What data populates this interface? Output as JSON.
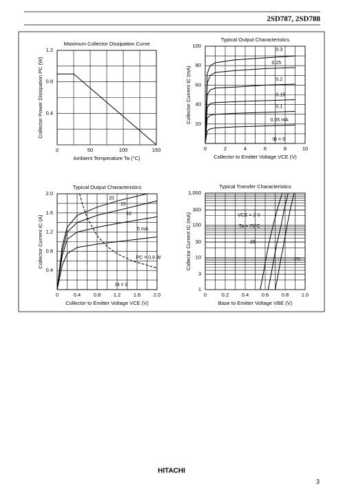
{
  "header": {
    "part_numbers": "2SD787, 2SD788"
  },
  "chart_data": [
    {
      "type": "line",
      "title": "Maximum Collector Dissipation Curve",
      "x_label": "Ambient Temperature  Ta  (°C)",
      "y_label": "Collector Power Dissipation PC (W)",
      "xlim": [
        0,
        150
      ],
      "ylim": [
        0,
        1.2
      ],
      "xticks": [
        0,
        50,
        100,
        150
      ],
      "yticks": [
        0.4,
        0.8,
        1.2
      ],
      "grid": true,
      "minor_grid": 2,
      "series": [
        {
          "color": "#000000",
          "x": [
            0,
            25,
            150
          ],
          "values": [
            0.9,
            0.9,
            0
          ]
        }
      ]
    },
    {
      "type": "line",
      "title": "Typical Output Characteristics",
      "x_label": "Collector to Emitter Voltage  VCE  (V)",
      "y_label": "Collector Current  IC  (mA)",
      "xlim": [
        0,
        10
      ],
      "ylim": [
        0,
        100
      ],
      "xticks": [
        0,
        2,
        4,
        6,
        8,
        10
      ],
      "yticks": [
        20,
        40,
        60,
        80,
        100
      ],
      "grid": true,
      "minor_grid": 2,
      "series": [
        {
          "name": "IB = 0",
          "color": "#000000",
          "x": [
            0,
            0.2,
            0.5,
            1,
            3,
            6,
            9
          ],
          "values": [
            0,
            0,
            0,
            0,
            0,
            0,
            0
          ]
        },
        {
          "name": "0.05 mA",
          "color": "#000000",
          "x": [
            0,
            0.2,
            0.5,
            1,
            3,
            6,
            9
          ],
          "values": [
            0,
            13,
            15,
            16,
            17,
            18,
            19
          ]
        },
        {
          "name": "0.1",
          "color": "#000000",
          "x": [
            0,
            0.2,
            0.5,
            1,
            3,
            6,
            9
          ],
          "values": [
            0,
            26,
            29,
            30,
            31,
            32,
            33
          ]
        },
        {
          "name": "0.15",
          "color": "#000000",
          "x": [
            0,
            0.2,
            0.5,
            1,
            3,
            6,
            9
          ],
          "values": [
            0,
            37,
            41,
            42,
            43,
            44,
            45
          ]
        },
        {
          "name": "0.2",
          "color": "#000000",
          "x": [
            0,
            0.2,
            0.5,
            1,
            3,
            6,
            9
          ],
          "values": [
            0,
            50,
            55,
            57,
            58,
            60,
            61
          ]
        },
        {
          "name": "0.25",
          "color": "#000000",
          "x": [
            0,
            0.2,
            0.5,
            1,
            3,
            6,
            9
          ],
          "values": [
            0,
            62,
            70,
            73,
            75,
            77,
            78
          ]
        },
        {
          "name": "0.3",
          "color": "#000000",
          "x": [
            0,
            0.2,
            0.5,
            1,
            3,
            6,
            9
          ],
          "values": [
            0,
            72,
            80,
            83,
            86,
            88,
            90
          ]
        }
      ]
    },
    {
      "type": "line",
      "title": "Typical Output Characteristics",
      "x_label": "Collector to Emitter Voltage  VCE  (V)",
      "y_label": "Collector Current  IC  (A)",
      "xlim": [
        0,
        2
      ],
      "ylim": [
        0,
        2
      ],
      "xticks": [
        0,
        0.4,
        0.8,
        1.2,
        1.6,
        {
          "value": 2,
          "label": "2.0"
        }
      ],
      "yticks": [
        0.4,
        0.8,
        1.2,
        1.6,
        {
          "value": 2,
          "label": "2.0"
        }
      ],
      "grid": true,
      "minor_grid": 2,
      "series": [
        {
          "name": "IB = 0",
          "color": "#000000",
          "x": [
            0,
            0.1,
            0.2,
            0.4,
            0.8,
            1.2,
            1.6,
            2
          ],
          "values": [
            0,
            0,
            0,
            0,
            0,
            0,
            0,
            0
          ]
        },
        {
          "name": "5 mA",
          "color": "#000000",
          "x": [
            0,
            0.1,
            0.2,
            0.4,
            0.8,
            1.2,
            1.6,
            2
          ],
          "values": [
            0,
            0.5,
            0.75,
            0.88,
            0.95,
            1.0,
            1.05,
            1.1
          ]
        },
        {
          "name": "10",
          "color": "#000000",
          "x": [
            0,
            0.1,
            0.2,
            0.4,
            0.8,
            1.2,
            1.6,
            2
          ],
          "values": [
            0,
            0.7,
            1.05,
            1.2,
            1.3,
            1.38,
            1.45,
            1.52
          ]
        },
        {
          "name": "15",
          "color": "#000000",
          "x": [
            0,
            0.1,
            0.2,
            0.4,
            0.8,
            1.2,
            1.6,
            2
          ],
          "values": [
            0,
            0.8,
            1.2,
            1.4,
            1.55,
            1.65,
            1.75,
            1.85
          ]
        },
        {
          "name": "20",
          "color": "#000000",
          "x": [
            0,
            0.1,
            0.2,
            0.4,
            0.8,
            1.2,
            1.6,
            1.8
          ],
          "values": [
            0,
            0.9,
            1.3,
            1.55,
            1.72,
            1.85,
            1.95,
            2.0
          ]
        },
        {
          "name": "PC = 0.9 W",
          "color": "#000000",
          "dash": true,
          "x": [
            0.45,
            0.5,
            0.6,
            0.8,
            1,
            1.2,
            1.5,
            2
          ],
          "values": [
            2,
            1.8,
            1.5,
            1.125,
            0.9,
            0.75,
            0.6,
            0.45
          ]
        }
      ]
    },
    {
      "type": "line",
      "title": "Typical Transfer Characteristics",
      "x_label": "Base to Emitter Voltage  VBE  (V)",
      "y_label": "Collector Current  IC  (mA)",
      "xlim": [
        0,
        1
      ],
      "ylim": [
        1,
        1000
      ],
      "log_y": true,
      "xticks": [
        0,
        0.2,
        0.4,
        0.6,
        0.8,
        {
          "value": 1,
          "label": "1.0"
        }
      ],
      "yticks": [
        1,
        3,
        10,
        30,
        100,
        300,
        {
          "value": 1000,
          "label": "1,000"
        }
      ],
      "grid": true,
      "minor_grid": 2,
      "annotations": [
        "VCE = 2 V"
      ],
      "series": [
        {
          "name": "Ta = 75°C",
          "color": "#000000",
          "x": [
            0.55,
            0.58,
            0.61,
            0.64,
            0.68,
            0.72,
            0.77
          ],
          "values": [
            1,
            3,
            10,
            30,
            100,
            300,
            1000
          ]
        },
        {
          "name": "25",
          "color": "#000000",
          "x": [
            0.63,
            0.66,
            0.69,
            0.72,
            0.76,
            0.79,
            0.83
          ],
          "values": [
            1,
            3,
            10,
            30,
            100,
            300,
            1000
          ]
        },
        {
          "name": "−25",
          "color": "#000000",
          "x": [
            0.7,
            0.73,
            0.76,
            0.79,
            0.82,
            0.85,
            0.89
          ],
          "values": [
            1,
            3,
            10,
            30,
            100,
            300,
            1000
          ]
        }
      ]
    }
  ],
  "footer": {
    "brand": "HITACHI",
    "page_number": 3
  }
}
